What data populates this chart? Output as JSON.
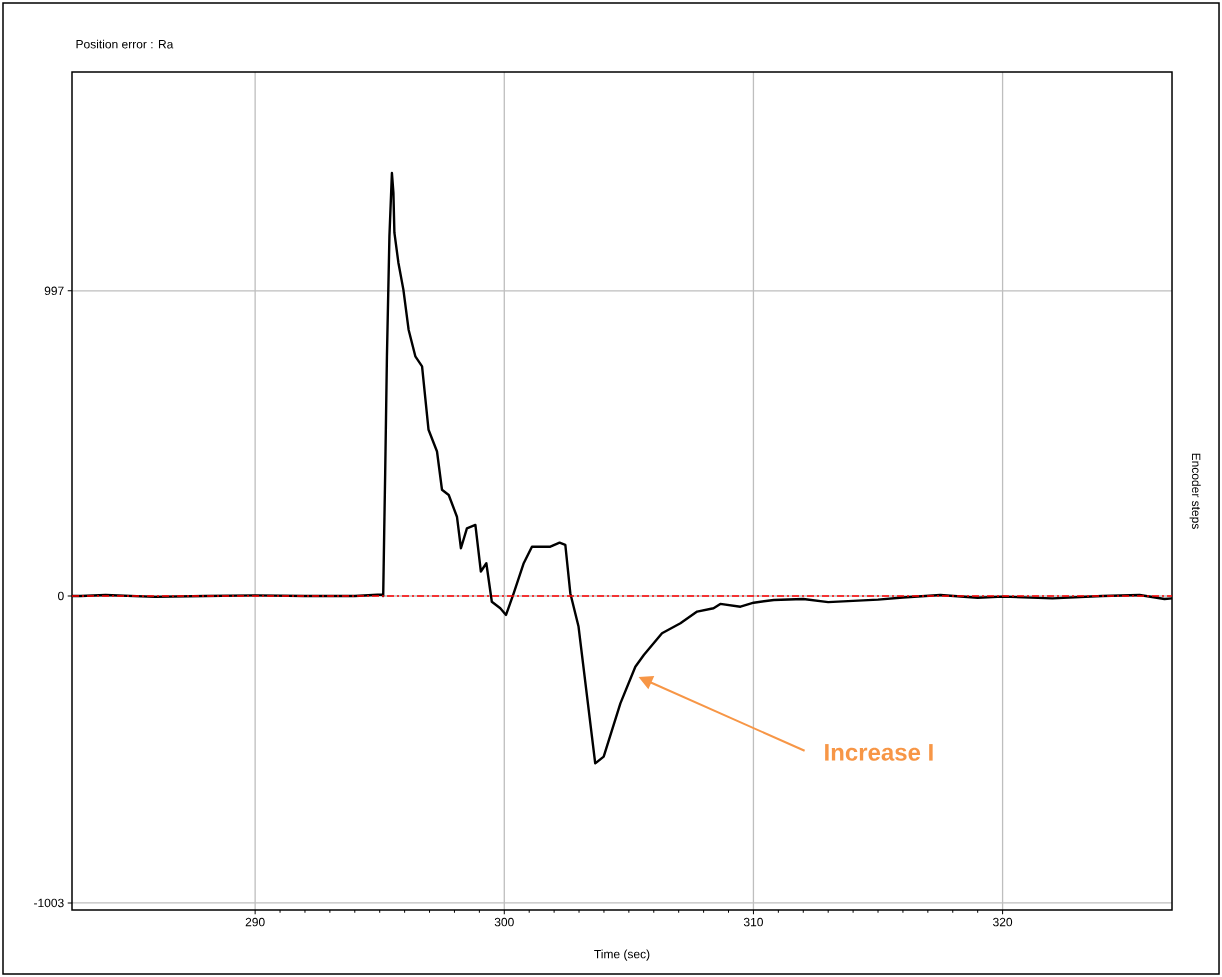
{
  "chart_data": {
    "type": "line",
    "title": "Position error : Ra",
    "xlabel": "Time (sec)",
    "ylabel": "Encoder steps",
    "xlim": [
      282.65,
      326.8
    ],
    "ylim": [
      -1026,
      1712
    ],
    "xticks": [
      290,
      300,
      310,
      320
    ],
    "yticks": [
      997,
      0,
      -1003
    ],
    "grid": true,
    "marker": "none",
    "line_style": "solid",
    "ref_lines": [
      {
        "axis": "y",
        "value": 0,
        "color": "#ff0000",
        "line_style": "dashed"
      }
    ],
    "annotations": [
      "Increase I"
    ],
    "series": [
      {
        "color": "#000000",
        "x": [
          282.65,
          283,
          284,
          286,
          288,
          290,
          292,
          294,
          295.1,
          295.14,
          295.18,
          295.22,
          295.29,
          295.39,
          295.49,
          295.55,
          295.59,
          295.75,
          295.95,
          296.16,
          296.43,
          296.7,
          296.96,
          297.3,
          297.5,
          297.77,
          298.1,
          298.26,
          298.5,
          298.84,
          299.06,
          299.28,
          299.5,
          299.84,
          300.07,
          300.38,
          300.78,
          301.11,
          301.85,
          302.22,
          302.45,
          302.65,
          302.98,
          303.65,
          303.99,
          304.66,
          305.26,
          305.6,
          306.33,
          307.07,
          307.74,
          308.4,
          308.67,
          309.48,
          310.01,
          310.82,
          312,
          313,
          315,
          316,
          317.5,
          319,
          320,
          322,
          324,
          325.5,
          326.5,
          326.8
        ],
        "values": [
          0,
          0,
          3,
          -3,
          0,
          2,
          0,
          0,
          5,
          0,
          206,
          402,
          783,
          1175,
          1382,
          1318,
          1187,
          1089,
          1001,
          870,
          783,
          750,
          543,
          472,
          347,
          330,
          259,
          156,
          221,
          232,
          80,
          107,
          -19,
          -40,
          -62,
          9,
          107,
          161,
          161,
          174,
          167,
          9,
          -100,
          -547,
          -525,
          -351,
          -231,
          -193,
          -122,
          -89,
          -51,
          -40,
          -26,
          -35,
          -22,
          -13,
          -10,
          -20,
          -12,
          -5,
          3,
          -6,
          -2,
          -8,
          0,
          3,
          -10,
          -8
        ]
      }
    ]
  }
}
